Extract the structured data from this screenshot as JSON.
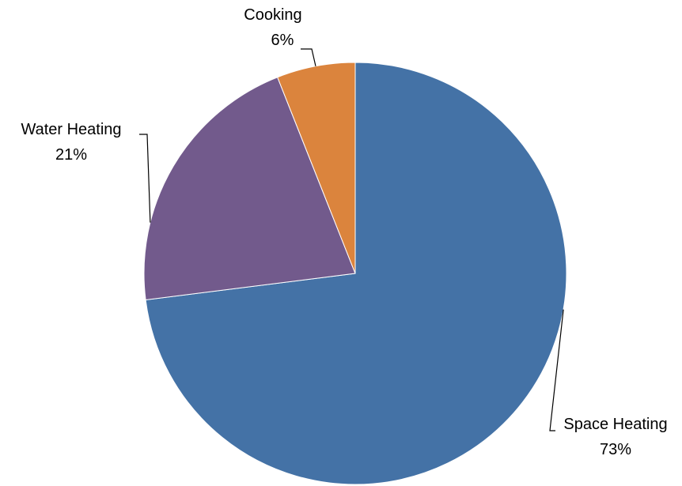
{
  "chart_data": {
    "type": "pie",
    "title": "",
    "slices": [
      {
        "name": "Space Heating",
        "value": 73,
        "label": "73%",
        "color": "#4472A6"
      },
      {
        "name": "Water Heating",
        "value": 21,
        "label": "21%",
        "color": "#725A8C"
      },
      {
        "name": "Cooking",
        "value": 6,
        "label": "6%",
        "color": "#DB843D"
      }
    ],
    "start_angle": "12 o'clock",
    "direction": "clockwise",
    "legend": "none"
  }
}
